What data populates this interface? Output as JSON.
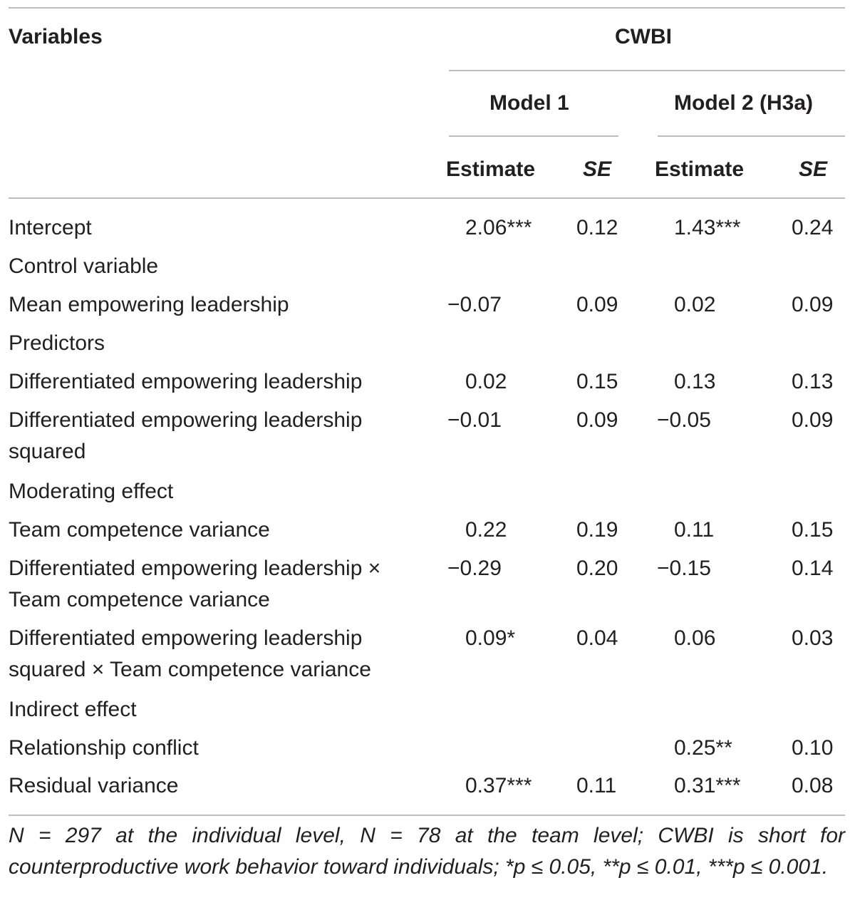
{
  "header": {
    "variables": "Variables",
    "cwbi": "CWBI",
    "model1": "Model 1",
    "model2": "Model 2 (H3a)",
    "estimate": "Estimate",
    "se": "SE"
  },
  "rows": [
    {
      "line1": "Intercept",
      "m1_est": "2.06***",
      "m1_se": "0.12",
      "m2_est": "1.43***",
      "m2_se": "0.24"
    },
    {
      "line1": "Control variable"
    },
    {
      "line1": "Mean empowering leadership",
      "m1_est": "−0.07",
      "m1_se": "0.09",
      "m2_est": "0.02",
      "m2_se": "0.09"
    },
    {
      "line1": "Predictors"
    },
    {
      "line1": "Differentiated empowering leadership",
      "m1_est": "0.02",
      "m1_se": "0.15",
      "m2_est": "0.13",
      "m2_se": "0.13"
    },
    {
      "line1": "Differentiated empowering leadership",
      "line2": "squared",
      "m1_est": "−0.01",
      "m1_se": "0.09",
      "m2_est": "−0.05",
      "m2_se": "0.09"
    },
    {
      "line1": "Moderating effect"
    },
    {
      "line1": "Team competence variance",
      "m1_est": "0.22",
      "m1_se": "0.19",
      "m2_est": "0.11",
      "m2_se": "0.15"
    },
    {
      "line1": "Differentiated empowering leadership ×",
      "line2": "Team competence variance",
      "m1_est": "−0.29",
      "m1_se": "0.20",
      "m2_est": "−0.15",
      "m2_se": "0.14"
    },
    {
      "line1": "Differentiated empowering leadership",
      "line2": "squared × Team competence variance",
      "m1_est": "0.09*",
      "m1_se": "0.04",
      "m2_est": "0.06",
      "m2_se": "0.03"
    },
    {
      "line1": "Indirect effect"
    },
    {
      "line1": "Relationship conflict",
      "m2_est": "0.25**",
      "m2_se": "0.10"
    },
    {
      "line1": "Residual variance",
      "m1_est": "0.37***",
      "m1_se": "0.11",
      "m2_est": "0.31***",
      "m2_se": "0.08"
    }
  ],
  "note": "N = 297 at the individual level, N = 78 at the team level; CWBI is short for counterproductive work behavior toward individuals; *p ≤ 0.05, **p ≤ 0.01, ***p ≤ 0.001."
}
